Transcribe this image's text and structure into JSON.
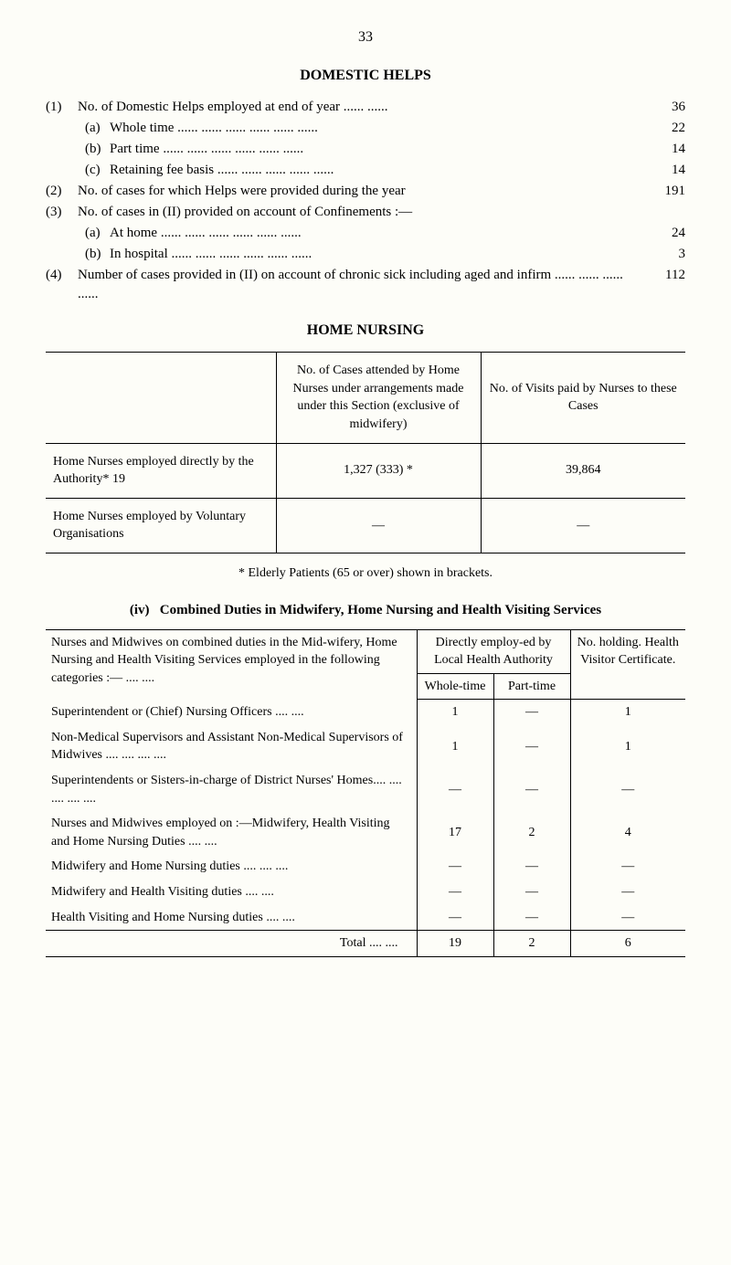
{
  "page_number": "33",
  "domestic_helps": {
    "heading": "DOMESTIC HELPS",
    "items": [
      {
        "num": "(1)",
        "label": "No. of Domestic Helps employed at end of year  ......  ......",
        "value": "36"
      },
      {
        "num": "",
        "sub": "(a)",
        "label": "Whole time      ......      ......      ......      ......      ......      ......",
        "value": "22"
      },
      {
        "num": "",
        "sub": "(b)",
        "label": "Part time      ......      ......      ......      ......      ......      ......",
        "value": "14"
      },
      {
        "num": "",
        "sub": "(c)",
        "label": "Retaining fee basis      ......      ......      ......      ......      ......",
        "value": "14"
      },
      {
        "num": "(2)",
        "label": "No. of cases for which Helps were provided during the year",
        "value": "191"
      },
      {
        "num": "(3)",
        "label": "No. of cases in (II) provided on account of Confinements :—",
        "value": ""
      },
      {
        "num": "",
        "sub": "(a)",
        "label": "At home      ......      ......      ......      ......      ......      ......",
        "value": "24"
      },
      {
        "num": "",
        "sub": "(b)",
        "label": "In hospital      ......      ......      ......      ......      ......      ......",
        "value": "3"
      },
      {
        "num": "(4)",
        "label": "Number of cases provided in (II) on account of chronic sick including aged and infirm      ......      ......      ......      ......",
        "value": "112"
      }
    ]
  },
  "home_nursing": {
    "heading": "HOME NURSING",
    "col2_header": "No. of Cases attended by Home Nurses under arrangements made under this Section (exclusive of midwifery)",
    "col3_header": "No. of Visits paid by Nurses to these Cases",
    "row1_label": "Home Nurses employed directly by the Authority* 19",
    "row1_cases": "1,327     (333) *",
    "row1_visits": "39,864",
    "row2_label": "Home Nurses employed by Voluntary Organisations",
    "row2_cases": "—",
    "row2_visits": "—",
    "footnote": "* Elderly Patients (65 or over) shown in brackets."
  },
  "combined": {
    "heading_num": "(iv)",
    "heading": "Combined Duties in Midwifery, Home Nursing and Health Visiting Services",
    "top_left": "Nurses and Midwives on combined duties in the Mid-wifery, Home Nursing and Health Visiting Services employed in the following categories :—      ....      ....",
    "employ_header": "Directly employ-ed by Local Health Authority",
    "cert_header": "No. holding. Health Visitor Certificate.",
    "whole_label": "Whole-time",
    "part_label": "Part-time",
    "rows": [
      {
        "label": "Superintendent or (Chief) Nursing Officers  ....   ....",
        "whole": "1",
        "part": "—",
        "cert": "1"
      },
      {
        "label": "Non-Medical Supervisors and Assistant Non-Medical Supervisors of Midwives      ....      ....      ....      ....",
        "whole": "1",
        "part": "—",
        "cert": "1"
      },
      {
        "label": "Superintendents or Sisters-in-charge of District Nurses' Homes....      ....      ....      ....      ....",
        "whole": "—",
        "part": "—",
        "cert": "—"
      },
      {
        "label": "Nurses and Midwives employed on :—Midwifery, Health Visiting and Home Nursing Duties  ....   ....",
        "whole": "17",
        "part": "2",
        "cert": "4"
      },
      {
        "label": "Midwifery and Home Nursing duties ....      ....      ....",
        "whole": "—",
        "part": "—",
        "cert": "—"
      },
      {
        "label": "Midwifery and Health Visiting duties      ....      ....",
        "whole": "—",
        "part": "—",
        "cert": "—"
      },
      {
        "label": "Health Visiting and Home Nursing duties      ....      ....",
        "whole": "—",
        "part": "—",
        "cert": "—"
      }
    ],
    "total_label": "Total      ....      ....",
    "total_whole": "19",
    "total_part": "2",
    "total_cert": "6"
  }
}
